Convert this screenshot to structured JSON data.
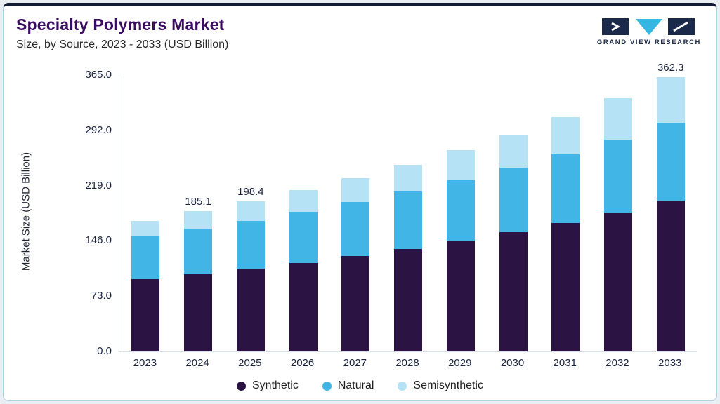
{
  "header": {
    "title": "Specialty Polymers Market",
    "subtitle": "Size, by Source, 2023 - 2033 (USD Billion)",
    "title_color": "#3a0d63"
  },
  "logo": {
    "text": "GRAND VIEW RESEARCH",
    "navy": "#1b2a4a",
    "cyan": "#35b6e2"
  },
  "chart_data": {
    "type": "bar",
    "stacked": true,
    "title": "Specialty Polymers Market Size, by Source, 2023 - 2033 (USD Billion)",
    "ylabel": "Market Size (USD Billion)",
    "xlabel": "",
    "ylim": [
      0,
      365
    ],
    "yticks": [
      0.0,
      73.0,
      146.0,
      219.0,
      292.0,
      365.0
    ],
    "grid": false,
    "legend_position": "bottom",
    "categories": [
      "2023",
      "2024",
      "2025",
      "2026",
      "2027",
      "2028",
      "2029",
      "2030",
      "2031",
      "2032",
      "2033"
    ],
    "series": [
      {
        "name": "Synthetic",
        "color": "#2b1444",
        "values": [
          95.0,
          102.0,
          109.0,
          117.0,
          126.0,
          135.5,
          146.0,
          157.5,
          170.0,
          183.7,
          198.8
        ]
      },
      {
        "name": "Natural",
        "color": "#41b6e6",
        "values": [
          57.6,
          60.1,
          63.4,
          67.0,
          71.0,
          75.5,
          80.0,
          85.0,
          90.5,
          96.5,
          103.0
        ]
      },
      {
        "name": "Semisynthetic",
        "color": "#b5e2f5",
        "values": [
          20.0,
          23.0,
          26.0,
          29.0,
          32.0,
          35.5,
          39.5,
          44.0,
          49.0,
          54.5,
          60.5
        ]
      }
    ],
    "totals": [
      172.6,
      185.1,
      198.4,
      213.0,
      229.0,
      246.5,
      265.5,
      286.5,
      309.5,
      334.7,
      362.3
    ],
    "bar_labels": {
      "2024": "185.1",
      "2025": "198.4",
      "2033": "362.3"
    }
  }
}
